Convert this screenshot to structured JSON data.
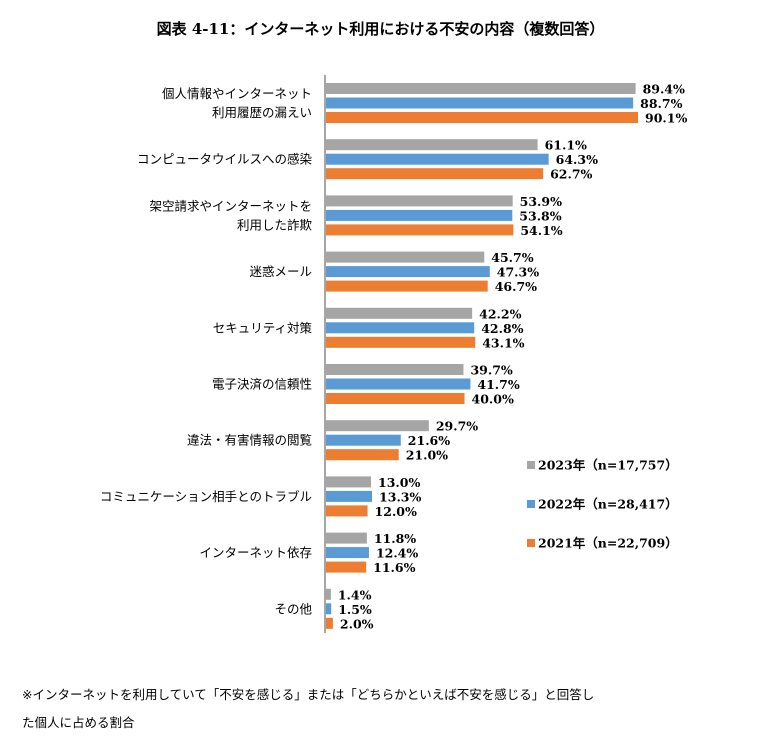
{
  "chart_data": {
    "type": "bar",
    "orientation": "horizontal",
    "title": "図表 4-11：インターネット利用における不安の内容（複数回答）",
    "categories": [
      [
        "個人情報やインターネット",
        "利用履歴の漏えい"
      ],
      [
        "コンピュータウイルスへの感染"
      ],
      [
        "架空請求やインターネットを",
        "利用した詐欺"
      ],
      [
        "迷惑メール"
      ],
      [
        "セキュリティ対策"
      ],
      [
        "電子決済の信頼性"
      ],
      [
        "違法・有害情報の閲覧"
      ],
      [
        "コミュニケーション相手とのトラブル"
      ],
      [
        "インターネット依存"
      ],
      [
        "その他"
      ]
    ],
    "series": [
      {
        "name": "2023年（n=17,757）",
        "color": "#A5A5A5",
        "values": [
          89.4,
          61.1,
          53.9,
          45.7,
          42.2,
          39.7,
          29.7,
          13.0,
          11.8,
          1.4
        ]
      },
      {
        "name": "2022年（n=28,417）",
        "color": "#5B9BD5",
        "values": [
          88.7,
          64.3,
          53.8,
          47.3,
          42.8,
          41.7,
          21.6,
          13.3,
          12.4,
          1.5
        ]
      },
      {
        "name": "2021年（n=22,709）",
        "color": "#ED7D31",
        "values": [
          90.1,
          62.7,
          54.1,
          46.7,
          43.1,
          40.0,
          21.0,
          12.0,
          11.6,
          2.0
        ]
      }
    ],
    "value_suffix": "%",
    "xlim": [
      0,
      100
    ],
    "legend": "right",
    "grid": false
  },
  "footnote": [
    "※インターネットを利用していて「不安を感じる」または「どちらかといえば不安を感じる」と回答し",
    "た個人に占める割合"
  ]
}
